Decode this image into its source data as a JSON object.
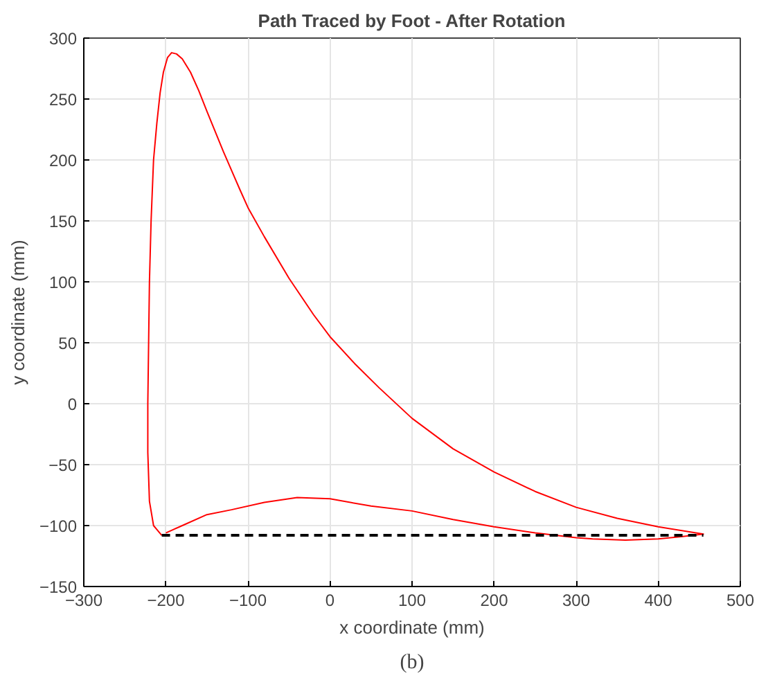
{
  "chart_data": {
    "type": "line",
    "title": "Path Traced by Foot - After Rotation",
    "xlabel": "x coordinate (mm)",
    "ylabel": "y coordinate (mm)",
    "xlim": [
      -300,
      500
    ],
    "ylim": [
      -150,
      300
    ],
    "xticks": [
      -300,
      -200,
      -100,
      0,
      100,
      200,
      300,
      400,
      500
    ],
    "yticks": [
      -150,
      -100,
      -50,
      0,
      50,
      100,
      150,
      200,
      250,
      300
    ],
    "grid": true,
    "annotations": [
      "(b)"
    ],
    "series": [
      {
        "color": "#ff0000",
        "line_style": "solid",
        "x": [
          -205,
          -215,
          -220,
          -222,
          -222,
          -221,
          -220,
          -218,
          -215,
          -211,
          -207,
          -203,
          -198,
          -193,
          -187,
          -180,
          -170,
          -160,
          -150,
          -130,
          -110,
          -100,
          -80,
          -50,
          -20,
          0,
          30,
          60,
          100,
          150,
          200,
          250,
          300,
          350,
          400,
          455,
          430,
          400,
          360,
          320,
          300,
          250,
          200,
          150,
          100,
          50,
          0,
          -40,
          -80,
          -120,
          -150,
          -180,
          -200
        ],
        "values": [
          -108,
          -100,
          -80,
          -40,
          0,
          50,
          100,
          150,
          200,
          230,
          255,
          272,
          284,
          288,
          287,
          283,
          272,
          257,
          240,
          207,
          176,
          161,
          137,
          103,
          73,
          55,
          33,
          13,
          -12,
          -37,
          -56,
          -72,
          -85,
          -94,
          -101,
          -107,
          -109,
          -111,
          -112,
          -111,
          -110,
          -106,
          -101,
          -95,
          -88,
          -84,
          -78,
          -77,
          -81,
          -87,
          -91,
          -100,
          -106
        ]
      },
      {
        "color": "#000000",
        "line_style": "dashed",
        "x": [
          -205,
          455
        ],
        "values": [
          -108,
          -108
        ]
      }
    ]
  }
}
